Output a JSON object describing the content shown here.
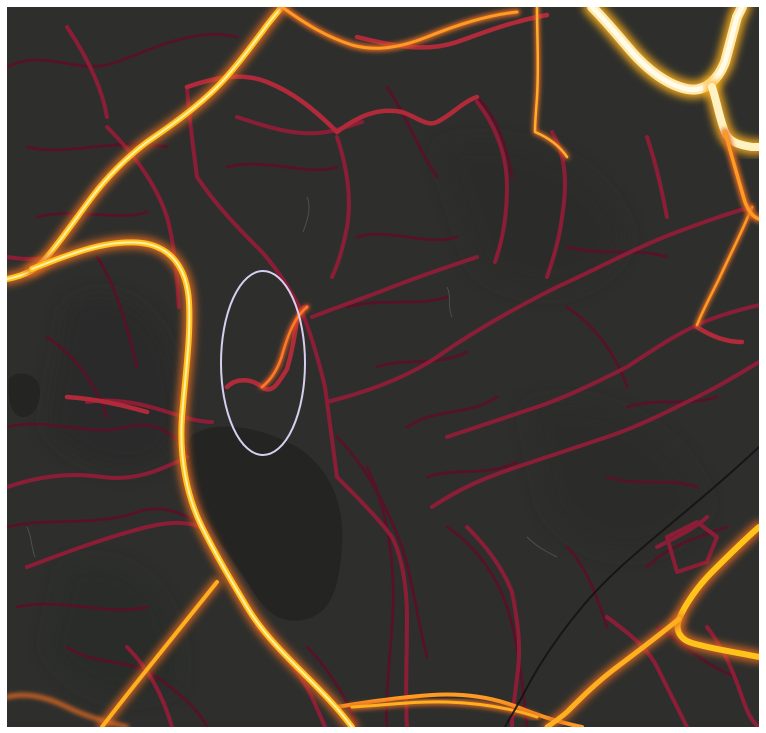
{
  "map": {
    "style": "heatmap",
    "colors": {
      "background": "#2e2f2d",
      "terrain_shadow": "#262726",
      "dark_patch": "#242423",
      "low": "#6e1530",
      "mid": "#a82638",
      "high": "#e36b20",
      "peak": "#ffc41a",
      "max": "#fff7d6",
      "annotation": "#d8cff0",
      "rail": "#141414"
    },
    "annotation": {
      "shape": "ellipse",
      "name": "highlight-circle"
    },
    "labels": []
  }
}
